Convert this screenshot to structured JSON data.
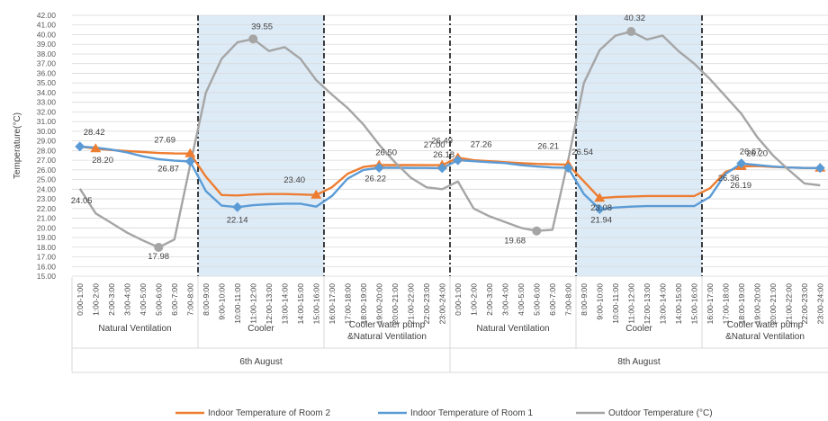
{
  "chart_data": {
    "type": "line",
    "ylabel": "Temperature(°C)",
    "ylim": [
      15,
      42
    ],
    "ystep": 1,
    "grid": true,
    "legend_position": "bottom",
    "categories": [
      "0:00-1:00",
      "1:00-2:00",
      "2:00-3:00",
      "3:00-4:00",
      "4:00-5:00",
      "5:00-6:00",
      "6:00-7:00",
      "7:00-8:00",
      "8:00-9:00",
      "9:00-10:00",
      "10:00-11:00",
      "11:00-12:00",
      "12:00-13:00",
      "13:00-14:00",
      "14:00-15:00",
      "15:00-16:00",
      "16:00-17:00",
      "17:00-18:00",
      "18:00-19:00",
      "19:00-20:00",
      "20:00-21:00",
      "21:00-22:00",
      "22:00-23:00",
      "23:00-24:00",
      "0:00-1:00",
      "1:00-2:00",
      "2:00-3:00",
      "3:00-4:00",
      "4:00-5:00",
      "5:00-6:00",
      "6:00-7:00",
      "7:00-8:00",
      "8:00-9:00",
      "9:00-10:00",
      "10:00-11:00",
      "11:00-12:00",
      "12:00-13:00",
      "13:00-14:00",
      "14:00-15:00",
      "15:00-16:00",
      "16:00-17:00",
      "17:00-18:00",
      "18:00-19:00",
      "19:00-20:00",
      "20:00-21:00",
      "21:00-22:00",
      "22:00-23:00",
      "23:00-24:00"
    ],
    "series": [
      {
        "name": "Indoor Temperature of Room 2",
        "color": "#ED7D31",
        "marker": "triangle",
        "values": [
          28.42,
          28.2,
          28.05,
          27.95,
          27.85,
          27.75,
          27.7,
          27.69,
          25.3,
          23.4,
          23.35,
          23.45,
          23.5,
          23.5,
          23.45,
          23.4,
          24.2,
          25.6,
          26.3,
          26.5,
          26.5,
          26.5,
          26.49,
          26.49,
          27.26,
          27.0,
          26.9,
          26.8,
          26.7,
          26.62,
          26.58,
          26.54,
          24.8,
          23.08,
          23.2,
          23.25,
          23.3,
          23.3,
          23.3,
          23.3,
          24.1,
          25.8,
          26.36,
          26.4,
          26.3,
          26.25,
          26.2,
          26.2
        ],
        "markers": [
          1,
          7,
          15,
          19,
          23,
          24,
          31,
          33,
          42,
          47
        ]
      },
      {
        "name": "Indoor Temperature of Room 1",
        "color": "#5B9BD5",
        "marker": "diamond",
        "values": [
          28.42,
          28.3,
          28.1,
          27.8,
          27.4,
          27.1,
          26.95,
          26.87,
          23.8,
          22.3,
          22.14,
          22.35,
          22.45,
          22.5,
          22.5,
          22.2,
          23.3,
          25.1,
          26.0,
          26.22,
          26.22,
          26.2,
          26.2,
          26.18,
          27.0,
          26.9,
          26.8,
          26.7,
          26.5,
          26.35,
          26.25,
          26.21,
          23.5,
          21.94,
          22.1,
          22.2,
          22.25,
          22.25,
          22.25,
          22.25,
          23.2,
          25.6,
          26.67,
          26.5,
          26.35,
          26.25,
          26.2,
          26.19
        ],
        "markers": [
          0,
          7,
          10,
          19,
          23,
          24,
          31,
          33,
          42,
          47
        ]
      },
      {
        "name": "Outdoor Temperature (°C)",
        "color": "#A5A5A5",
        "marker": "circle",
        "values": [
          24.05,
          21.5,
          20.5,
          19.5,
          18.7,
          17.98,
          18.8,
          26.5,
          34.0,
          37.5,
          39.2,
          39.55,
          38.3,
          38.7,
          37.5,
          35.3,
          33.8,
          32.4,
          30.7,
          28.6,
          26.8,
          25.2,
          24.2,
          24.0,
          24.8,
          22.0,
          21.2,
          20.6,
          20.0,
          19.68,
          19.8,
          27.0,
          35.0,
          38.4,
          39.9,
          40.32,
          39.5,
          39.9,
          38.3,
          37.0,
          35.4,
          33.6,
          31.8,
          29.4,
          27.5,
          26.0,
          24.6,
          24.4
        ],
        "markers": [
          5,
          11,
          29,
          35
        ]
      }
    ],
    "data_labels": [
      {
        "text": "28.42",
        "series": 0,
        "index": 0
      },
      {
        "text": "28.20",
        "series": 0,
        "index": 1
      },
      {
        "text": "24.05",
        "series": 2,
        "index": 0
      },
      {
        "text": "17.98",
        "series": 2,
        "index": 5
      },
      {
        "text": "27.69",
        "series": 0,
        "index": 7
      },
      {
        "text": "26.87",
        "series": 1,
        "index": 7
      },
      {
        "text": "39.55",
        "series": 2,
        "index": 11
      },
      {
        "text": "22.14",
        "series": 1,
        "index": 10
      },
      {
        "text": "23.40",
        "series": 0,
        "index": 15
      },
      {
        "text": "26.50",
        "series": 0,
        "index": 19
      },
      {
        "text": "26.22",
        "series": 1,
        "index": 19
      },
      {
        "text": "26.49",
        "series": 0,
        "index": 23
      },
      {
        "text": "26.18",
        "series": 1,
        "index": 23
      },
      {
        "text": "27.26",
        "series": 0,
        "index": 24
      },
      {
        "text": "27.00",
        "series": 1,
        "index": 24
      },
      {
        "text": "19.68",
        "series": 2,
        "index": 29
      },
      {
        "text": "26.54",
        "series": 0,
        "index": 31
      },
      {
        "text": "26.21",
        "series": 1,
        "index": 31
      },
      {
        "text": "23.08",
        "series": 0,
        "index": 33
      },
      {
        "text": "21.94",
        "series": 1,
        "index": 33
      },
      {
        "text": "40.32",
        "series": 2,
        "index": 35
      },
      {
        "text": "26.67",
        "series": 1,
        "index": 42
      },
      {
        "text": "26.36",
        "series": 0,
        "index": 42
      },
      {
        "text": "26.20",
        "series": 0,
        "index": 47
      },
      {
        "text": "26.19",
        "series": 1,
        "index": 47
      }
    ],
    "modes": [
      {
        "label": "Natural Ventilation",
        "start": 0,
        "end": 8,
        "shaded": false
      },
      {
        "label": "Cooler",
        "start": 8,
        "end": 16,
        "shaded": true
      },
      {
        "label": "Cooler water pump &Natural Ventilation",
        "start": 16,
        "end": 24,
        "shaded": false
      },
      {
        "label": "Natural Ventilation",
        "start": 24,
        "end": 32,
        "shaded": false
      },
      {
        "label": "Cooler",
        "start": 32,
        "end": 40,
        "shaded": true
      },
      {
        "label": "Cooler water pump &Natural Ventilation",
        "start": 40,
        "end": 48,
        "shaded": false
      }
    ],
    "days": [
      {
        "label": "6th August",
        "start": 0,
        "end": 24
      },
      {
        "label": "8th August",
        "start": 24,
        "end": 48
      }
    ],
    "shade_color": "#DDEBF7",
    "divider_color": "#000000"
  }
}
